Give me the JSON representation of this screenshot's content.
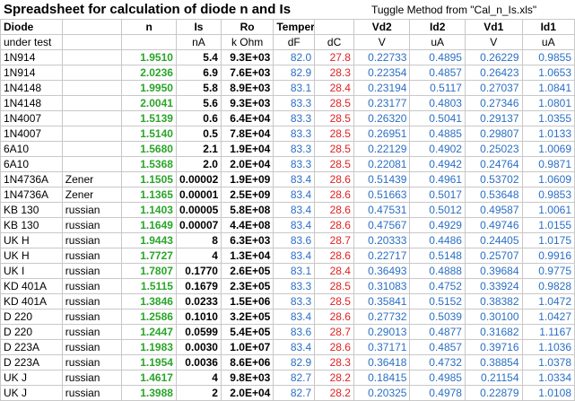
{
  "title": "Spreadsheet for calculation of diode n and Is",
  "subtitle": "Tuggle Method from \"Cal_n_Is.xls\"",
  "header1": [
    "Diode",
    "",
    "n",
    "Is",
    "Ro",
    "Temperature",
    "",
    "Vd2",
    "Id2",
    "Vd1",
    "Id1"
  ],
  "header2": [
    "under test",
    "",
    "",
    "nA",
    "k Ohm",
    "dF",
    "dC",
    "V",
    "uA",
    "V",
    "uA"
  ],
  "rows": [
    [
      "1N914",
      "",
      "1.9510",
      "5.4",
      "9.3E+03",
      "82.0",
      "27.8",
      "0.22733",
      "0.4895",
      "0.26229",
      "0.9855"
    ],
    [
      "1N914",
      "",
      "2.0236",
      "6.9",
      "7.6E+03",
      "82.9",
      "28.3",
      "0.22354",
      "0.4857",
      "0.26423",
      "1.0653"
    ],
    [
      "1N4148",
      "",
      "1.9950",
      "5.8",
      "8.9E+03",
      "83.1",
      "28.4",
      "0.23194",
      "0.5117",
      "0.27037",
      "1.0841"
    ],
    [
      "1N4148",
      "",
      "2.0041",
      "5.6",
      "9.3E+03",
      "83.3",
      "28.5",
      "0.23177",
      "0.4803",
      "0.27346",
      "1.0801"
    ],
    [
      "1N4007",
      "",
      "1.5139",
      "0.6",
      "6.4E+04",
      "83.3",
      "28.5",
      "0.26320",
      "0.5041",
      "0.29137",
      "1.0355"
    ],
    [
      "1N4007",
      "",
      "1.5140",
      "0.5",
      "7.8E+04",
      "83.3",
      "28.5",
      "0.26951",
      "0.4885",
      "0.29807",
      "1.0133"
    ],
    [
      "6A10",
      "",
      "1.5680",
      "2.1",
      "1.9E+04",
      "83.3",
      "28.5",
      "0.22129",
      "0.4902",
      "0.25023",
      "1.0069"
    ],
    [
      "6A10",
      "",
      "1.5368",
      "2.0",
      "2.0E+04",
      "83.3",
      "28.5",
      "0.22081",
      "0.4942",
      "0.24764",
      "0.9871"
    ],
    [
      "1N4736A",
      "Zener",
      "1.1505",
      "0.00002",
      "1.9E+09",
      "83.4",
      "28.6",
      "0.51439",
      "0.4961",
      "0.53702",
      "1.0609"
    ],
    [
      "1N4736A",
      "Zener",
      "1.1365",
      "0.00001",
      "2.5E+09",
      "83.4",
      "28.6",
      "0.51663",
      "0.5017",
      "0.53648",
      "0.9853"
    ],
    [
      "KB 130",
      "russian",
      "1.1403",
      "0.00005",
      "5.8E+08",
      "83.4",
      "28.6",
      "0.47531",
      "0.5012",
      "0.49587",
      "1.0061"
    ],
    [
      "KB 130",
      "russian",
      "1.1649",
      "0.00007",
      "4.4E+08",
      "83.4",
      "28.6",
      "0.47567",
      "0.4929",
      "0.49746",
      "1.0155"
    ],
    [
      "UK H",
      "russian",
      "1.9443",
      "8",
      "6.3E+03",
      "83.6",
      "28.7",
      "0.20333",
      "0.4486",
      "0.24405",
      "1.0175"
    ],
    [
      "UK H",
      "russian",
      "1.7727",
      "4",
      "1.3E+04",
      "83.4",
      "28.6",
      "0.22717",
      "0.5148",
      "0.25707",
      "0.9916"
    ],
    [
      "UK I",
      "russian",
      "1.7807",
      "0.1770",
      "2.6E+05",
      "83.1",
      "28.4",
      "0.36493",
      "0.4888",
      "0.39684",
      "0.9775"
    ],
    [
      "KD 401A",
      "russian",
      "1.5115",
      "0.1679",
      "2.3E+05",
      "83.3",
      "28.5",
      "0.31083",
      "0.4752",
      "0.33924",
      "0.9828"
    ],
    [
      "KD 401A",
      "russian",
      "1.3846",
      "0.0233",
      "1.5E+06",
      "83.3",
      "28.5",
      "0.35841",
      "0.5152",
      "0.38382",
      "1.0472"
    ],
    [
      "D 220",
      "russian",
      "1.2586",
      "0.1010",
      "3.2E+05",
      "83.4",
      "28.6",
      "0.27732",
      "0.5039",
      "0.30100",
      "1.0427"
    ],
    [
      "D 220",
      "russian",
      "1.2447",
      "0.0599",
      "5.4E+05",
      "83.6",
      "28.7",
      "0.29013",
      "0.4877",
      "0.31682",
      "1.1167"
    ],
    [
      "D 223A",
      "russian",
      "1.1983",
      "0.0030",
      "1.0E+07",
      "83.4",
      "28.6",
      "0.37171",
      "0.4857",
      "0.39716",
      "1.1036"
    ],
    [
      "D 223A",
      "russian",
      "1.1954",
      "0.0036",
      "8.6E+06",
      "82.9",
      "28.3",
      "0.36418",
      "0.4732",
      "0.38854",
      "1.0378"
    ],
    [
      "UK J",
      "russian",
      "1.4617",
      "4",
      "9.8E+03",
      "82.7",
      "28.2",
      "0.18415",
      "0.4985",
      "0.21154",
      "1.0334"
    ],
    [
      "UK J",
      "russian",
      "1.3988",
      "2",
      "2.0E+04",
      "82.7",
      "28.2",
      "0.20325",
      "0.4978",
      "0.22879",
      "1.0108"
    ]
  ],
  "colors": {
    "n": "#2aa52a",
    "blue": "#2b6fc4",
    "dC": "#e02020",
    "grid": "#c8c8c8"
  }
}
